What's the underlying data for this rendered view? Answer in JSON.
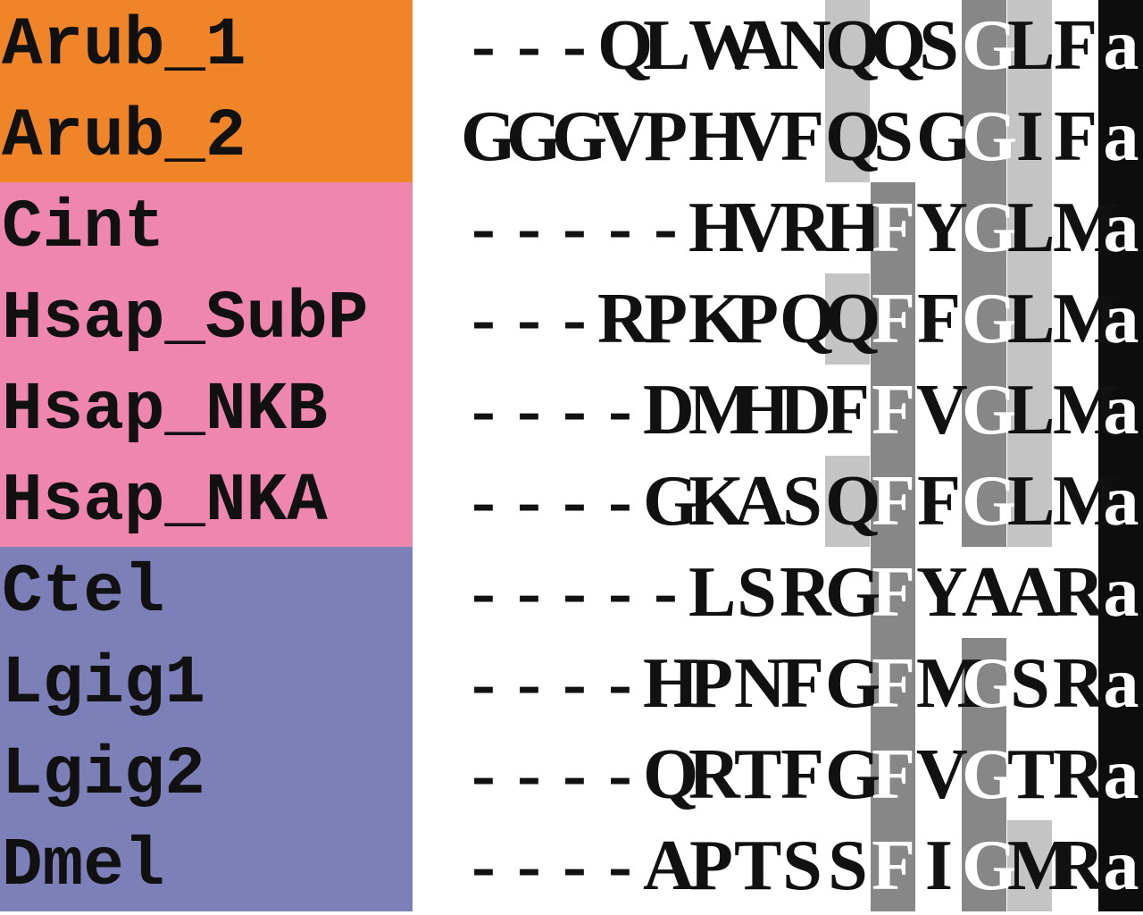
{
  "groups": [
    {
      "color": "#f08428",
      "rows": [
        0,
        1
      ]
    },
    {
      "color": "#ee86ae",
      "rows": [
        2,
        3,
        4,
        5
      ]
    },
    {
      "color": "#7d7fb9",
      "rows": [
        6,
        7,
        8,
        9
      ]
    }
  ],
  "shade_colors": {
    "light": "#c4c4c4",
    "mid": "#878787",
    "dark": "#0d0d0d"
  },
  "rows": [
    {
      "label": "Arub_1",
      "seq": "---QLWANQQSGLFa"
    },
    {
      "label": "Arub_2",
      "seq": "GGGVPHVFQSGGIFa"
    },
    {
      "label": "Cint",
      "seq": "-----HVRHFYGLMa"
    },
    {
      "label": "Hsap_SubP",
      "seq": "---RPKPQQFFGLMa"
    },
    {
      "label": "Hsap_NKB",
      "seq": "----DMHDFFVGLMa"
    },
    {
      "label": "Hsap_NKA",
      "seq": "----GKASQFFGLMa"
    },
    {
      "label": "Ctel",
      "seq": "-----LSRGFYAARa"
    },
    {
      "label": "Lgig1",
      "seq": "----HPNFGFMGSRa"
    },
    {
      "label": "Lgig2",
      "seq": "----QRTFGFVGTRa"
    },
    {
      "label": "Dmel",
      "seq": "----APTSSFIGMRa"
    }
  ],
  "shading": [
    {
      "col": 8,
      "from": 0,
      "to": 1,
      "level": "light"
    },
    {
      "col": 8,
      "from": 3,
      "to": 3,
      "level": "light"
    },
    {
      "col": 8,
      "from": 5,
      "to": 5,
      "level": "light"
    },
    {
      "col": 9,
      "from": 2,
      "to": 9,
      "level": "mid"
    },
    {
      "col": 11,
      "from": 0,
      "to": 5,
      "level": "mid"
    },
    {
      "col": 11,
      "from": 7,
      "to": 9,
      "level": "mid"
    },
    {
      "col": 12,
      "from": 0,
      "to": 5,
      "level": "light"
    },
    {
      "col": 12,
      "from": 9,
      "to": 9,
      "level": "light"
    },
    {
      "col": 14,
      "from": 0,
      "to": 9,
      "level": "dark"
    }
  ]
}
